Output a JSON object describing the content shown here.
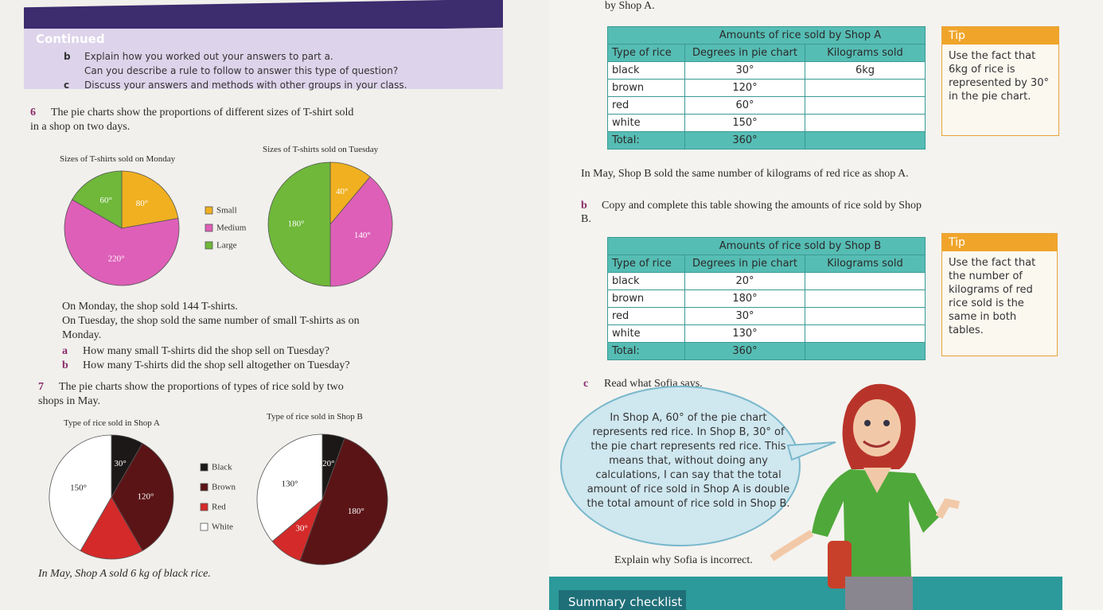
{
  "left_page": {
    "continued_box": {
      "heading": "Continued",
      "items": [
        {
          "marker": "b",
          "text": "Explain how you worked out your answers to part a."
        },
        {
          "text": "Can you describe a rule to follow to answer this type of question?"
        },
        {
          "marker": "c",
          "text": "Discuss your answers and methods with other groups in your class."
        }
      ]
    },
    "question_6": {
      "number": "6",
      "text": "The pie charts show the proportions of different sizes of T-shirt sold in a shop on two days.",
      "charts": [
        {
          "title": "Sizes of T-shirts sold on Monday",
          "slices": [
            {
              "value": 80,
              "label": "80°",
              "color": "#f0b020"
            },
            {
              "value": 220,
              "label": "220°",
              "color": "#de5fb8"
            },
            {
              "value": 60,
              "label": "60°",
              "color": "#6fb83a"
            }
          ]
        },
        {
          "title": "Sizes of T-shirts sold on Tuesday",
          "slices": [
            {
              "value": 40,
              "label": "40°",
              "color": "#f0b020"
            },
            {
              "value": 140,
              "label": "140°",
              "color": "#de5fb8"
            },
            {
              "value": 180,
              "label": "180°",
              "color": "#6fb83a"
            }
          ]
        }
      ],
      "legend": [
        {
          "text": "Small",
          "color": "#f0b020"
        },
        {
          "text": "Medium",
          "color": "#de5fb8"
        },
        {
          "text": "Large",
          "color": "#6fb83a"
        }
      ],
      "statements": [
        "On Monday, the shop sold 144 T-shirts.",
        "On Tuesday, the shop sold the same number of small T-shirts as on Monday."
      ],
      "parts": [
        {
          "marker": "a",
          "text": "How many small T-shirts did the shop sell on Tuesday?"
        },
        {
          "marker": "b",
          "text": "How many T-shirts did the shop sell altogether on Tuesday?"
        }
      ]
    },
    "question_7": {
      "number": "7",
      "text": "The pie charts show the proportions of types of rice sold by two shops in May.",
      "charts": [
        {
          "title": "Type of rice sold in Shop A",
          "slices": [
            {
              "value": 30,
              "label": "30°",
              "color": "#1c1818"
            },
            {
              "value": 120,
              "label": "120°",
              "color": "#5a1416"
            },
            {
              "value": 60,
              "color": "#d42a2a"
            },
            {
              "value": 150,
              "label": "150°",
              "color": "#ffffff"
            }
          ]
        },
        {
          "title": "Type of rice sold in Shop B",
          "slices": [
            {
              "value": 20,
              "label": "20°",
              "color": "#1c1818"
            },
            {
              "value": 180,
              "label": "180°",
              "color": "#5a1416"
            },
            {
              "value": 30,
              "label": "30°",
              "color": "#d42a2a"
            },
            {
              "value": 130,
              "label": "130°",
              "color": "#ffffff"
            }
          ]
        }
      ],
      "legend": [
        {
          "text": "Black",
          "color": "#1c1818"
        },
        {
          "text": "Brown",
          "color": "#5a1416"
        },
        {
          "text": "Red",
          "color": "#d42a2a"
        },
        {
          "text": "White",
          "color": "#ffffff"
        }
      ],
      "statement": "In May, Shop A sold 6 kg of black rice."
    }
  },
  "right_page": {
    "top_text": "by Shop A.",
    "table_a": {
      "title": "Amounts of rice sold by Shop A",
      "header": [
        "Type of rice",
        "Degrees in pie chart",
        "Kilograms sold"
      ],
      "rows": [
        [
          "black",
          "30°",
          "6kg"
        ],
        [
          "brown",
          "120°",
          null
        ],
        [
          "red",
          "60°",
          null
        ],
        [
          "white",
          "150°",
          null
        ],
        [
          "Total:",
          "360°",
          null
        ]
      ]
    },
    "tip_a": {
      "heading": "Tip",
      "text": "Use the fact that 6kg of rice is represented by 30° in the pie chart."
    },
    "statement": "In May, Shop B sold the same number of kilograms of red rice as shop A.",
    "part_b": {
      "marker": "b",
      "text": "Copy and complete this table showing the amounts of rice sold by Shop B."
    },
    "table_b": {
      "title": "Amounts of rice sold by Shop B",
      "header": [
        "Type of rice",
        "Degrees in pie chart",
        "Kilograms sold"
      ],
      "rows": [
        [
          "black",
          "20°",
          null
        ],
        [
          "brown",
          "180°",
          null
        ],
        [
          "red",
          "30°",
          null
        ],
        [
          "white",
          "130°",
          null
        ],
        [
          "Total:",
          "360°",
          null
        ]
      ]
    },
    "tip_b": {
      "heading": "Tip",
      "text": "Use the fact that the number of kilograms of red rice sold is the same in both tables."
    },
    "part_c": {
      "marker": "c",
      "text": "Read what Sofia says."
    },
    "speech": "In Shop A, 60° of the pie chart represents red rice. In Shop B, 30° of the pie chart represents red rice. This means that, without doing any calculations, I can say that the total amount of rice sold in Shop A is double the total amount of rice sold in Shop B.",
    "question": "Explain why Sofia is incorrect.",
    "footer": "Summary checklist"
  }
}
